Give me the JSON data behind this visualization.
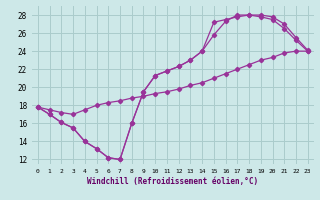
{
  "xlabel": "Windchill (Refroidissement éolien,°C)",
  "bg_color": "#cde8e8",
  "grid_color": "#aacccc",
  "line_color": "#993399",
  "xlim": [
    -0.5,
    23.5
  ],
  "ylim": [
    11.5,
    29
  ],
  "xticks": [
    0,
    1,
    2,
    3,
    4,
    5,
    6,
    7,
    8,
    9,
    10,
    11,
    12,
    13,
    14,
    15,
    16,
    17,
    18,
    19,
    20,
    21,
    22,
    23
  ],
  "yticks": [
    12,
    14,
    16,
    18,
    20,
    22,
    24,
    26,
    28
  ],
  "line1_x": [
    0,
    1,
    2,
    3,
    4,
    5,
    6,
    7,
    8,
    9,
    10,
    11,
    12,
    13,
    14,
    15,
    16,
    17,
    18,
    19,
    20,
    21,
    22,
    23
  ],
  "line1_y": [
    17.8,
    17.0,
    16.1,
    15.5,
    14.0,
    13.2,
    12.2,
    12.0,
    16.0,
    19.5,
    21.3,
    21.8,
    22.3,
    23.0,
    24.0,
    25.8,
    27.3,
    28.0,
    28.0,
    27.8,
    27.5,
    26.5,
    25.2,
    24.0
  ],
  "line2_x": [
    0,
    1,
    2,
    3,
    4,
    5,
    6,
    7,
    8,
    9,
    10,
    11,
    12,
    13,
    14,
    15,
    16,
    17,
    18,
    19,
    20,
    21,
    22,
    23
  ],
  "line2_y": [
    17.8,
    17.0,
    16.1,
    15.5,
    14.0,
    13.2,
    12.2,
    12.0,
    16.0,
    19.5,
    21.3,
    21.8,
    22.3,
    23.0,
    24.0,
    27.2,
    27.5,
    27.8,
    28.0,
    28.0,
    27.8,
    27.0,
    25.5,
    24.1
  ],
  "line3_x": [
    0,
    1,
    2,
    3,
    4,
    5,
    6,
    7,
    8,
    9,
    10,
    11,
    12,
    13,
    14,
    15,
    16,
    17,
    18,
    19,
    20,
    21,
    22,
    23
  ],
  "line3_y": [
    17.8,
    17.5,
    17.2,
    17.0,
    17.5,
    18.0,
    18.3,
    18.5,
    18.8,
    19.0,
    19.3,
    19.5,
    19.8,
    20.2,
    20.5,
    21.0,
    21.5,
    22.0,
    22.5,
    23.0,
    23.3,
    23.8,
    24.0,
    24.0
  ]
}
